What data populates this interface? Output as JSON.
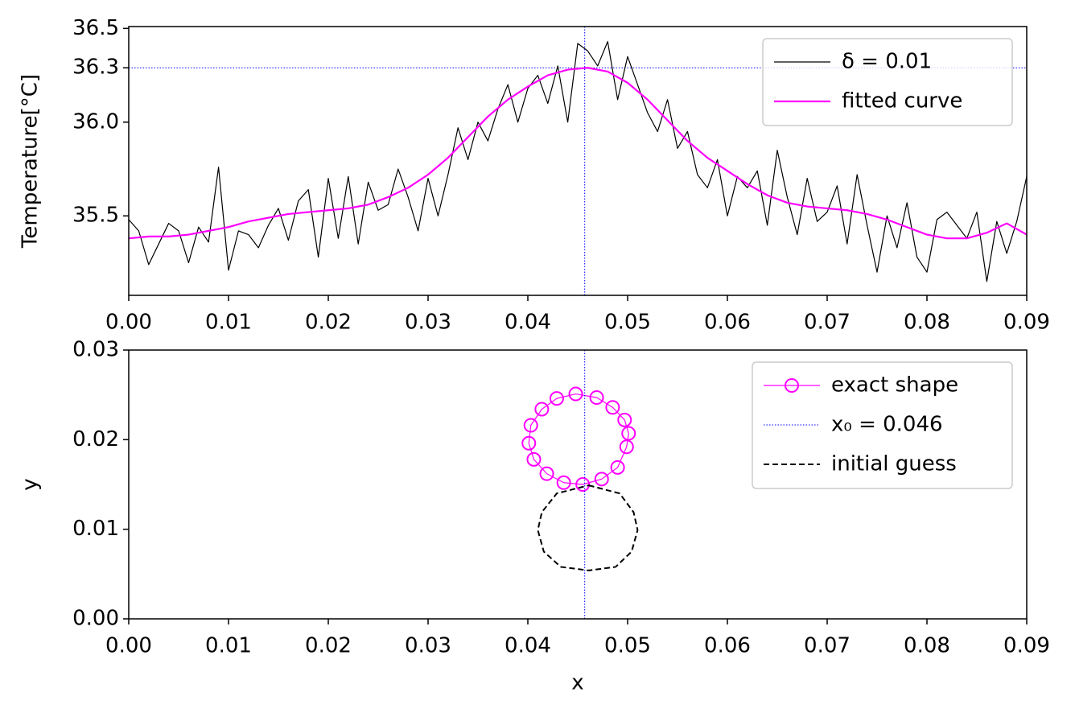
{
  "chart_data": [
    {
      "type": "line",
      "ylabel": "Temperature[°C]",
      "xlim": [
        0,
        0.09
      ],
      "ylim": [
        35.076,
        36.51
      ],
      "xticks": [
        {
          "value": 0,
          "label": "0.00"
        },
        0.01,
        0.02,
        0.03,
        0.04,
        0.05,
        0.06,
        0.07,
        0.08,
        0.09
      ],
      "yticks": [
        35.5,
        {
          "value": 36,
          "label": "36.0"
        },
        {
          "value": 36.29,
          "label": "36.3",
          "color": "#0000ff"
        },
        36.5
      ],
      "hline": 36.29,
      "vline": 0.0457,
      "ref_color": "#0000ff",
      "legend": "upper right",
      "series": [
        {
          "name": "δ = 0.01",
          "color": "#000000",
          "linewidth": 1.2,
          "x": [
            0,
            0.001,
            0.002,
            0.003,
            0.004,
            0.005,
            0.006,
            0.007,
            0.008,
            0.009,
            0.01,
            0.011,
            0.012,
            0.013,
            0.014,
            0.015,
            0.016,
            0.017,
            0.018,
            0.019,
            0.02,
            0.021,
            0.022,
            0.023,
            0.024,
            0.025,
            0.026,
            0.027,
            0.028,
            0.029,
            0.03,
            0.031,
            0.032,
            0.033,
            0.034,
            0.035,
            0.036,
            0.037,
            0.038,
            0.039,
            0.04,
            0.041,
            0.042,
            0.043,
            0.044,
            0.045,
            0.046,
            0.047,
            0.048,
            0.049,
            0.05,
            0.051,
            0.052,
            0.053,
            0.054,
            0.055,
            0.056,
            0.057,
            0.058,
            0.059,
            0.06,
            0.061,
            0.062,
            0.063,
            0.064,
            0.065,
            0.066,
            0.067,
            0.068,
            0.069,
            0.07,
            0.071,
            0.072,
            0.073,
            0.074,
            0.075,
            0.076,
            0.077,
            0.078,
            0.079,
            0.08,
            0.081,
            0.082,
            0.083,
            0.084,
            0.085,
            0.086,
            0.087,
            0.088,
            0.089,
            0.09
          ],
          "values": [
            35.48,
            35.42,
            35.24,
            35.35,
            35.46,
            35.42,
            35.25,
            35.44,
            35.36,
            35.76,
            35.21,
            35.42,
            35.4,
            35.33,
            35.45,
            35.54,
            35.37,
            35.58,
            35.64,
            35.28,
            35.7,
            35.38,
            35.71,
            35.35,
            35.68,
            35.53,
            35.56,
            35.75,
            35.6,
            35.42,
            35.7,
            35.5,
            35.72,
            35.97,
            35.8,
            36.0,
            35.9,
            36.07,
            36.2,
            36.0,
            36.18,
            36.25,
            36.1,
            36.3,
            36.0,
            36.42,
            36.38,
            36.3,
            36.43,
            36.12,
            36.35,
            36.2,
            36.05,
            35.95,
            36.12,
            35.86,
            35.95,
            35.72,
            35.65,
            35.8,
            35.5,
            35.71,
            35.65,
            35.74,
            35.45,
            35.85,
            35.6,
            35.4,
            35.7,
            35.47,
            35.52,
            35.66,
            35.35,
            35.72,
            35.45,
            35.2,
            35.5,
            35.33,
            35.57,
            35.28,
            35.2,
            35.48,
            35.52,
            35.45,
            35.38,
            35.52,
            35.15,
            35.47,
            35.3,
            35.47,
            35.71
          ]
        },
        {
          "name": "fitted curve",
          "color": "#ff00ff",
          "linewidth": 2.2,
          "x": [
            0,
            0.002,
            0.004,
            0.006,
            0.008,
            0.01,
            0.012,
            0.014,
            0.016,
            0.018,
            0.02,
            0.022,
            0.024,
            0.026,
            0.028,
            0.03,
            0.032,
            0.034,
            0.036,
            0.038,
            0.04,
            0.042,
            0.044,
            0.046,
            0.048,
            0.05,
            0.052,
            0.054,
            0.056,
            0.058,
            0.06,
            0.062,
            0.064,
            0.066,
            0.068,
            0.07,
            0.072,
            0.074,
            0.076,
            0.078,
            0.08,
            0.082,
            0.084,
            0.086,
            0.088,
            0.09
          ],
          "values": [
            35.38,
            35.39,
            35.39,
            35.4,
            35.42,
            35.44,
            35.47,
            35.49,
            35.51,
            35.52,
            35.53,
            35.54,
            35.56,
            35.6,
            35.65,
            35.72,
            35.81,
            35.92,
            36.03,
            36.12,
            36.19,
            36.25,
            36.28,
            36.29,
            36.27,
            36.21,
            36.12,
            36.01,
            35.9,
            35.81,
            35.74,
            35.67,
            35.61,
            35.57,
            35.55,
            35.54,
            35.53,
            35.51,
            35.48,
            35.44,
            35.4,
            35.38,
            35.38,
            35.41,
            35.46,
            35.4
          ]
        }
      ]
    },
    {
      "type": "line",
      "xlabel": "x",
      "ylabel": "y",
      "xlim": [
        0,
        0.09
      ],
      "ylim": [
        0,
        0.03
      ],
      "xticks": [
        {
          "value": 0,
          "label": "0.00"
        },
        0.01,
        0.02,
        0.03,
        0.04,
        0.05,
        0.06,
        0.07,
        0.08,
        0.09
      ],
      "yticks": [
        {
          "value": 0,
          "label": "0.00"
        },
        0.01,
        0.02,
        0.03
      ],
      "legend": "upper right",
      "series": [
        {
          "name": "exact shape",
          "color": "#ff00ff",
          "linewidth": 1.2,
          "marker": "o",
          "closed": true,
          "x": [
            0.0448,
            0.0469,
            0.0485,
            0.0497,
            0.0501,
            0.0499,
            0.049,
            0.0474,
            0.0455,
            0.0436,
            0.0419,
            0.0406,
            0.0401,
            0.0403,
            0.0414,
            0.0429
          ],
          "values": [
            0.0251,
            0.0247,
            0.0236,
            0.0222,
            0.0207,
            0.0192,
            0.0169,
            0.0156,
            0.015,
            0.0152,
            0.0162,
            0.0178,
            0.0196,
            0.0216,
            0.0234,
            0.0246
          ]
        },
        {
          "name": "x₀ = 0.046",
          "color": "#0000ff",
          "linewidth": 1,
          "linestyle": "dotted",
          "vline": 0.0457
        },
        {
          "name": "initial guess",
          "color": "#000000",
          "linewidth": 2,
          "linestyle": "dashed",
          "closed": true,
          "x": [
            0.0461,
            0.0492,
            0.0506,
            0.051,
            0.0504,
            0.0488,
            0.0461,
            0.0433,
            0.0416,
            0.041,
            0.0414,
            0.0429
          ],
          "values": [
            0.0149,
            0.014,
            0.0119,
            0.0099,
            0.0075,
            0.0058,
            0.0054,
            0.0058,
            0.0075,
            0.0099,
            0.0119,
            0.014
          ]
        }
      ]
    }
  ]
}
